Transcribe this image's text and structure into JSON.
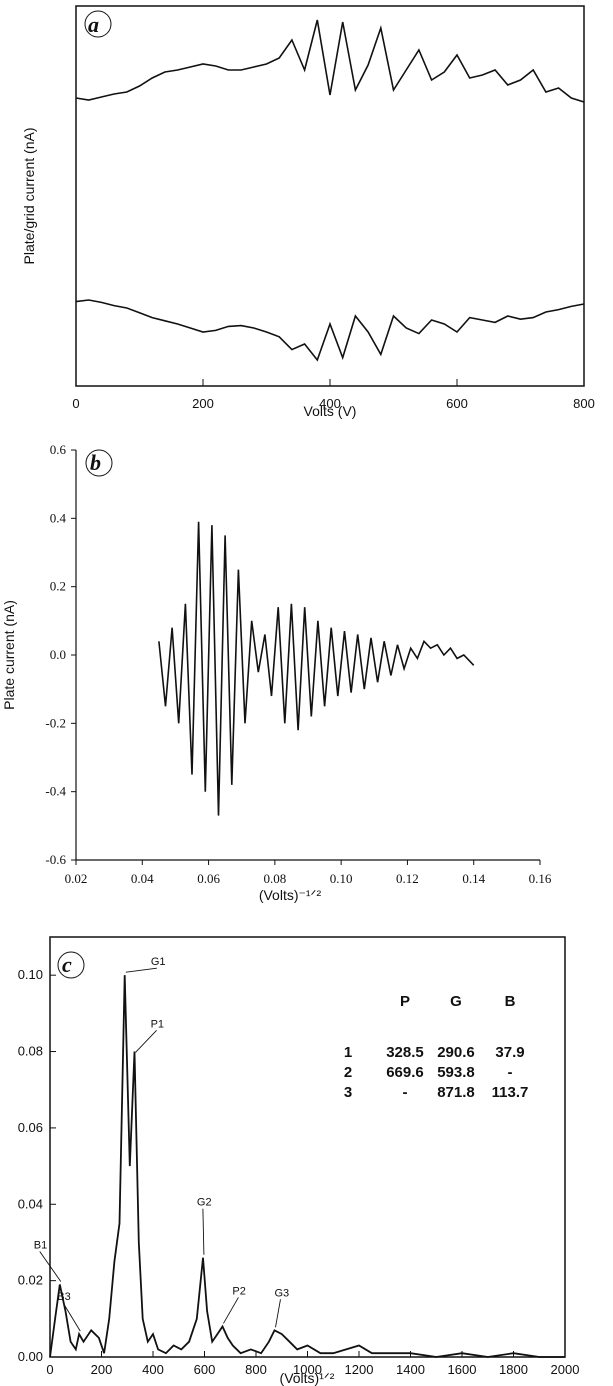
{
  "chart_data": [
    {
      "panel": "a",
      "type": "line",
      "xlabel": "Volts (V)",
      "ylabel": "Plate/grid current (nA)",
      "xlim": [
        0,
        800
      ],
      "xticks": [
        "0",
        "200",
        "400",
        "600",
        "800"
      ],
      "y_ticks_labeled": false,
      "series": [
        {
          "x": [
            0,
            20,
            40,
            60,
            80,
            100,
            120,
            140,
            160,
            180,
            200,
            220,
            240,
            260,
            280,
            300,
            320,
            340,
            360,
            380,
            400,
            420,
            440,
            460,
            480,
            500,
            520,
            540,
            560,
            580,
            600,
            620,
            640,
            660,
            680,
            700,
            720,
            740,
            760,
            780,
            800
          ],
          "values": [
            0.02,
            0.0,
            0.03,
            0.06,
            0.08,
            0.14,
            0.22,
            0.28,
            0.3,
            0.33,
            0.36,
            0.34,
            0.3,
            0.3,
            0.33,
            0.36,
            0.42,
            0.6,
            0.3,
            0.8,
            0.05,
            0.78,
            0.1,
            0.35,
            0.72,
            0.1,
            0.3,
            0.5,
            0.2,
            0.28,
            0.45,
            0.22,
            0.25,
            0.3,
            0.15,
            0.2,
            0.3,
            0.08,
            0.12,
            0.02,
            -0.02
          ]
        },
        {
          "x": [
            0,
            20,
            40,
            60,
            80,
            100,
            120,
            140,
            160,
            180,
            200,
            220,
            240,
            260,
            280,
            300,
            320,
            340,
            360,
            380,
            400,
            420,
            440,
            460,
            480,
            500,
            520,
            540,
            560,
            580,
            600,
            620,
            640,
            660,
            680,
            700,
            720,
            740,
            760,
            780,
            800
          ],
          "values": [
            -0.02,
            0.0,
            -0.03,
            -0.07,
            -0.1,
            -0.16,
            -0.22,
            -0.26,
            -0.3,
            -0.35,
            -0.4,
            -0.38,
            -0.33,
            -0.32,
            -0.35,
            -0.4,
            -0.46,
            -0.62,
            -0.55,
            -0.75,
            -0.3,
            -0.72,
            -0.2,
            -0.4,
            -0.68,
            -0.2,
            -0.35,
            -0.42,
            -0.25,
            -0.3,
            -0.4,
            -0.22,
            -0.25,
            -0.28,
            -0.2,
            -0.24,
            -0.22,
            -0.15,
            -0.12,
            -0.08,
            -0.05
          ]
        }
      ]
    },
    {
      "panel": "b",
      "type": "line",
      "xlabel": "(Volts)⁻¹ᐟ²",
      "ylabel": "Plate current (nA)",
      "xlim": [
        0.02,
        0.16
      ],
      "ylim": [
        -0.6,
        0.6
      ],
      "xticks": [
        "0.02",
        "0.04",
        "0.06",
        "0.08",
        "0.10",
        "0.12",
        "0.14",
        "0.16"
      ],
      "yticks": [
        "0.6",
        "0.4",
        "0.2",
        "0.0",
        "-0.2",
        "-0.4",
        "-0.6"
      ],
      "series": [
        {
          "x": [
            0.045,
            0.047,
            0.049,
            0.051,
            0.053,
            0.055,
            0.057,
            0.059,
            0.061,
            0.063,
            0.065,
            0.067,
            0.069,
            0.071,
            0.073,
            0.075,
            0.077,
            0.079,
            0.081,
            0.083,
            0.085,
            0.087,
            0.089,
            0.091,
            0.093,
            0.095,
            0.097,
            0.099,
            0.101,
            0.103,
            0.105,
            0.107,
            0.109,
            0.111,
            0.113,
            0.115,
            0.117,
            0.119,
            0.121,
            0.123,
            0.125,
            0.127,
            0.129,
            0.131,
            0.133,
            0.135,
            0.137,
            0.139,
            0.14
          ],
          "values": [
            0.04,
            -0.15,
            0.08,
            -0.2,
            0.15,
            -0.35,
            0.39,
            -0.4,
            0.38,
            -0.47,
            0.35,
            -0.38,
            0.25,
            -0.2,
            0.1,
            -0.05,
            0.06,
            -0.12,
            0.14,
            -0.2,
            0.15,
            -0.22,
            0.14,
            -0.18,
            0.1,
            -0.15,
            0.08,
            -0.12,
            0.07,
            -0.11,
            0.06,
            -0.1,
            0.05,
            -0.08,
            0.04,
            -0.06,
            0.03,
            -0.04,
            0.02,
            -0.01,
            0.04,
            0.02,
            0.03,
            0.0,
            0.02,
            -0.01,
            0.0,
            -0.02,
            -0.03
          ]
        }
      ]
    },
    {
      "panel": "c",
      "type": "line",
      "xlabel": "(Volts)¹ᐟ²",
      "xlim": [
        0,
        2000
      ],
      "ylim": [
        0,
        0.11
      ],
      "xticks": [
        "0",
        "200",
        "400",
        "600",
        "800",
        "1000",
        "1200",
        "1400",
        "1600",
        "1800",
        "2000"
      ],
      "yticks": [
        "0.00",
        "0.02",
        "0.04",
        "0.06",
        "0.08",
        "0.10"
      ],
      "series": [
        {
          "x": [
            0,
            20,
            38,
            60,
            80,
            100,
            113,
            130,
            160,
            190,
            210,
            230,
            250,
            270,
            290,
            310,
            328,
            345,
            360,
            380,
            400,
            420,
            450,
            480,
            510,
            540,
            570,
            594,
            610,
            630,
            650,
            670,
            690,
            710,
            740,
            780,
            820,
            850,
            872,
            900,
            930,
            960,
            1000,
            1050,
            1100,
            1150,
            1200,
            1250,
            1300,
            1400,
            1500,
            1600,
            1700,
            1800,
            1900,
            2000
          ],
          "values": [
            0.0,
            0.01,
            0.019,
            0.012,
            0.004,
            0.002,
            0.006,
            0.004,
            0.007,
            0.005,
            0.001,
            0.01,
            0.025,
            0.035,
            0.1,
            0.05,
            0.08,
            0.03,
            0.01,
            0.004,
            0.006,
            0.002,
            0.001,
            0.003,
            0.002,
            0.004,
            0.01,
            0.026,
            0.012,
            0.004,
            0.006,
            0.008,
            0.005,
            0.003,
            0.001,
            0.002,
            0.001,
            0.004,
            0.007,
            0.006,
            0.004,
            0.002,
            0.003,
            0.001,
            0.001,
            0.002,
            0.003,
            0.001,
            0.001,
            0.001,
            0.0,
            0.001,
            0.0,
            0.001,
            0.0,
            0.0
          ]
        }
      ],
      "annotations": [
        {
          "label": "G1",
          "x": 290.6,
          "y": 0.1
        },
        {
          "label": "P1",
          "x": 328.5,
          "y": 0.079
        },
        {
          "label": "B1",
          "x": 37.9,
          "y": 0.019
        },
        {
          "label": "B3",
          "x": 113.7,
          "y": 0.006
        },
        {
          "label": "G2",
          "x": 593.8,
          "y": 0.026
        },
        {
          "label": "P2",
          "x": 669.6,
          "y": 0.008
        },
        {
          "label": "G3",
          "x": 871.8,
          "y": 0.007
        }
      ],
      "table": {
        "columns": [
          "",
          "P",
          "G",
          "B"
        ],
        "rows": [
          [
            "1",
            "328.5",
            "290.6",
            "37.9"
          ],
          [
            "2",
            "669.6",
            "593.8",
            "-"
          ],
          [
            "3",
            "-",
            "871.8",
            "113.7"
          ]
        ]
      }
    }
  ],
  "panel_labels": [
    "a",
    "b",
    "c"
  ]
}
